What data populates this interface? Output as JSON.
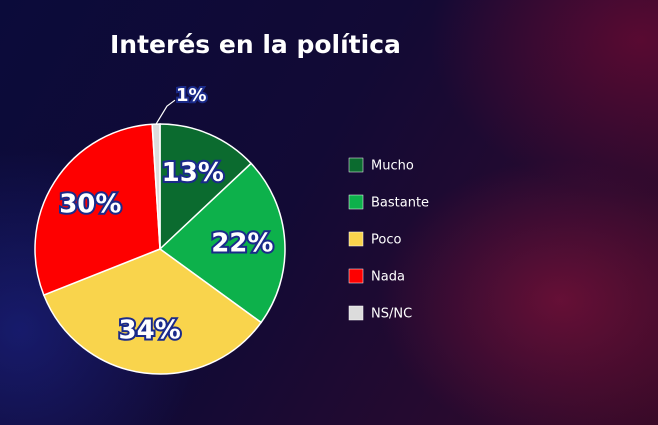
{
  "chart_data": {
    "type": "pie",
    "title": "Interés en la política",
    "categories": [
      "Mucho",
      "Bastante",
      "Poco",
      "Nada",
      "NS/NC"
    ],
    "values": [
      13,
      22,
      34,
      30,
      1
    ],
    "value_labels": [
      "13%",
      "22%",
      "34%",
      "30%",
      "1%"
    ],
    "colors": [
      "#0b6b2f",
      "#0db14b",
      "#f9d44c",
      "#fe0000",
      "#dcdcdc"
    ],
    "legend": "right"
  }
}
